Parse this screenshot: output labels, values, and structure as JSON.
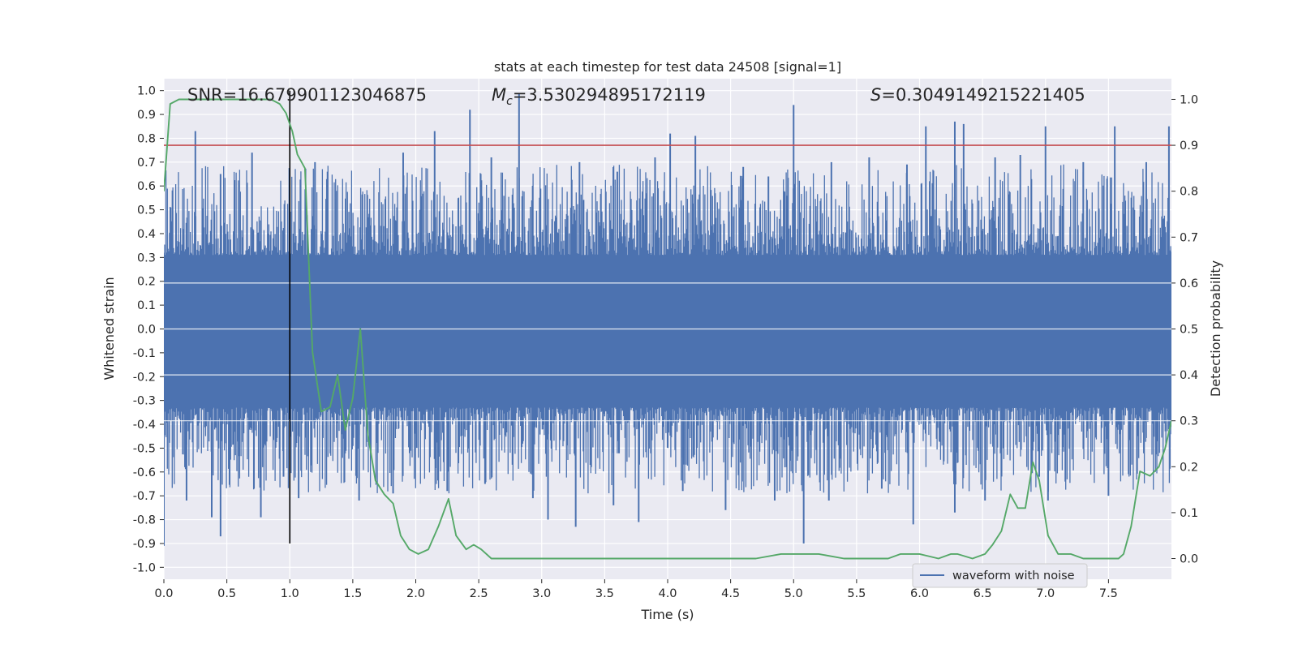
{
  "chart_data": {
    "type": "line",
    "title": "stats at each timestep for test data 24508 [signal=1]",
    "xlabel": "Time (s)",
    "ylabel": "Whitened strain",
    "y2label": "Detection probability",
    "xlim": [
      0.0,
      8.0
    ],
    "ylim": [
      -1.05,
      1.05
    ],
    "y2lim": [
      -0.045,
      1.045
    ],
    "x_ticks": [
      "0.0",
      "0.5",
      "1.0",
      "1.5",
      "2.0",
      "2.5",
      "3.0",
      "3.5",
      "4.0",
      "4.5",
      "5.0",
      "5.5",
      "6.0",
      "6.5",
      "7.0",
      "7.5"
    ],
    "y_ticks": [
      "1.0",
      "0.9",
      "0.8",
      "0.7",
      "0.6",
      "0.5",
      "0.4",
      "0.3",
      "0.2",
      "0.1",
      "0.0",
      "-0.1",
      "-0.2",
      "-0.3",
      "-0.4",
      "-0.5",
      "-0.6",
      "-0.7",
      "-0.8",
      "-0.9",
      "-1.0"
    ],
    "y2_ticks": [
      "1.0",
      "0.9",
      "0.8",
      "0.7",
      "0.6",
      "0.5",
      "0.4",
      "0.3",
      "0.2",
      "0.1",
      "0.0"
    ],
    "annotations": {
      "snr": "SNR=16.679901123046875",
      "mc_symbol": "M",
      "mc_subscript": "c",
      "mc_value": "=3.530294895172119",
      "s_symbol": "S",
      "s_value": "=0.3049149215221405"
    },
    "legend": {
      "label": "waveform with noise",
      "position": "lower-right"
    },
    "threshold": {
      "value": 0.9,
      "axis": "right",
      "color": "#c44e52"
    },
    "marker_time": 1.0,
    "waveform": {
      "name": "waveform with noise",
      "color": "#4c72b0",
      "dense_band": [
        -0.33,
        0.31
      ],
      "peaks_pos": [
        [
          0.25,
          0.83
        ],
        [
          2.43,
          0.92
        ],
        [
          2.82,
          0.99
        ],
        [
          5.0,
          0.94
        ],
        [
          6.28,
          0.87
        ],
        [
          2.15,
          0.83
        ],
        [
          4.02,
          0.82
        ],
        [
          4.22,
          0.81
        ],
        [
          6.05,
          0.85
        ],
        [
          6.35,
          0.86
        ],
        [
          7.0,
          0.85
        ],
        [
          7.55,
          0.85
        ],
        [
          7.98,
          0.85
        ],
        [
          1.2,
          0.7
        ],
        [
          0.7,
          0.74
        ],
        [
          3.9,
          0.72
        ],
        [
          5.6,
          0.72
        ],
        [
          1.9,
          0.74
        ],
        [
          3.3,
          0.7
        ],
        [
          4.6,
          0.68
        ],
        [
          5.3,
          0.7
        ],
        [
          6.8,
          0.73
        ],
        [
          7.3,
          0.7
        ],
        [
          0.45,
          0.65
        ],
        [
          2.6,
          0.72
        ],
        [
          3.6,
          0.66
        ],
        [
          4.8,
          0.64
        ],
        [
          5.9,
          0.69
        ],
        [
          6.6,
          0.72
        ],
        [
          7.8,
          0.7
        ]
      ],
      "peaks_neg": [
        [
          0.0,
          -0.91
        ],
        [
          5.08,
          -0.9
        ],
        [
          0.45,
          -0.87
        ],
        [
          3.05,
          -0.8
        ],
        [
          3.27,
          -0.83
        ],
        [
          3.77,
          -0.81
        ],
        [
          5.95,
          -0.82
        ],
        [
          0.38,
          -0.79
        ],
        [
          0.77,
          -0.79
        ],
        [
          6.28,
          -0.77
        ],
        [
          4.46,
          -0.76
        ],
        [
          1.07,
          -0.71
        ],
        [
          2.93,
          -0.71
        ],
        [
          4.85,
          -0.72
        ],
        [
          5.28,
          -0.72
        ],
        [
          0.18,
          -0.72
        ],
        [
          1.55,
          -0.72
        ],
        [
          3.57,
          -0.74
        ],
        [
          7.02,
          -0.72
        ],
        [
          6.52,
          -0.72
        ],
        [
          1.82,
          -0.69
        ],
        [
          2.25,
          -0.68
        ],
        [
          4.12,
          -0.68
        ],
        [
          7.5,
          -0.7
        ],
        [
          5.7,
          -0.67
        ],
        [
          0.95,
          -0.62
        ],
        [
          2.55,
          -0.65
        ],
        [
          6.95,
          -0.62
        ]
      ]
    },
    "detection_probability": {
      "name": "detection probability",
      "color": "#55a868",
      "x": [
        0.0,
        0.05,
        0.12,
        0.2,
        0.3,
        0.45,
        0.6,
        0.75,
        0.85,
        0.92,
        0.97,
        1.02,
        1.06,
        1.12,
        1.18,
        1.25,
        1.32,
        1.38,
        1.44,
        1.5,
        1.56,
        1.62,
        1.68,
        1.75,
        1.82,
        1.88,
        1.95,
        2.02,
        2.1,
        2.18,
        2.26,
        2.32,
        2.4,
        2.46,
        2.52,
        2.6,
        2.7,
        2.8,
        2.95,
        3.1,
        3.3,
        3.5,
        3.8,
        4.0,
        4.3,
        4.5,
        4.7,
        4.9,
        5.05,
        5.2,
        5.4,
        5.6,
        5.75,
        5.85,
        6.0,
        6.15,
        6.25,
        6.3,
        6.42,
        6.52,
        6.58,
        6.65,
        6.72,
        6.78,
        6.84,
        6.9,
        6.95,
        7.02,
        7.1,
        7.2,
        7.3,
        7.4,
        7.5,
        7.58,
        7.62,
        7.68,
        7.75,
        7.83,
        7.9,
        7.95,
        8.0
      ],
      "y": [
        0.8,
        0.99,
        1.0,
        1.0,
        1.0,
        1.0,
        1.0,
        1.0,
        1.0,
        0.99,
        0.97,
        0.93,
        0.88,
        0.85,
        0.45,
        0.32,
        0.33,
        0.4,
        0.28,
        0.35,
        0.5,
        0.27,
        0.17,
        0.14,
        0.12,
        0.05,
        0.02,
        0.01,
        0.02,
        0.07,
        0.13,
        0.05,
        0.02,
        0.03,
        0.02,
        0.0,
        0.0,
        0.0,
        0.0,
        0.0,
        0.0,
        0.0,
        0.0,
        0.0,
        0.0,
        0.0,
        0.0,
        0.01,
        0.01,
        0.01,
        0.0,
        0.0,
        0.0,
        0.01,
        0.01,
        0.0,
        0.01,
        0.01,
        0.0,
        0.01,
        0.03,
        0.06,
        0.14,
        0.11,
        0.11,
        0.21,
        0.17,
        0.05,
        0.01,
        0.01,
        0.0,
        0.0,
        0.0,
        0.0,
        0.01,
        0.07,
        0.19,
        0.18,
        0.2,
        0.24,
        0.3
      ]
    }
  }
}
